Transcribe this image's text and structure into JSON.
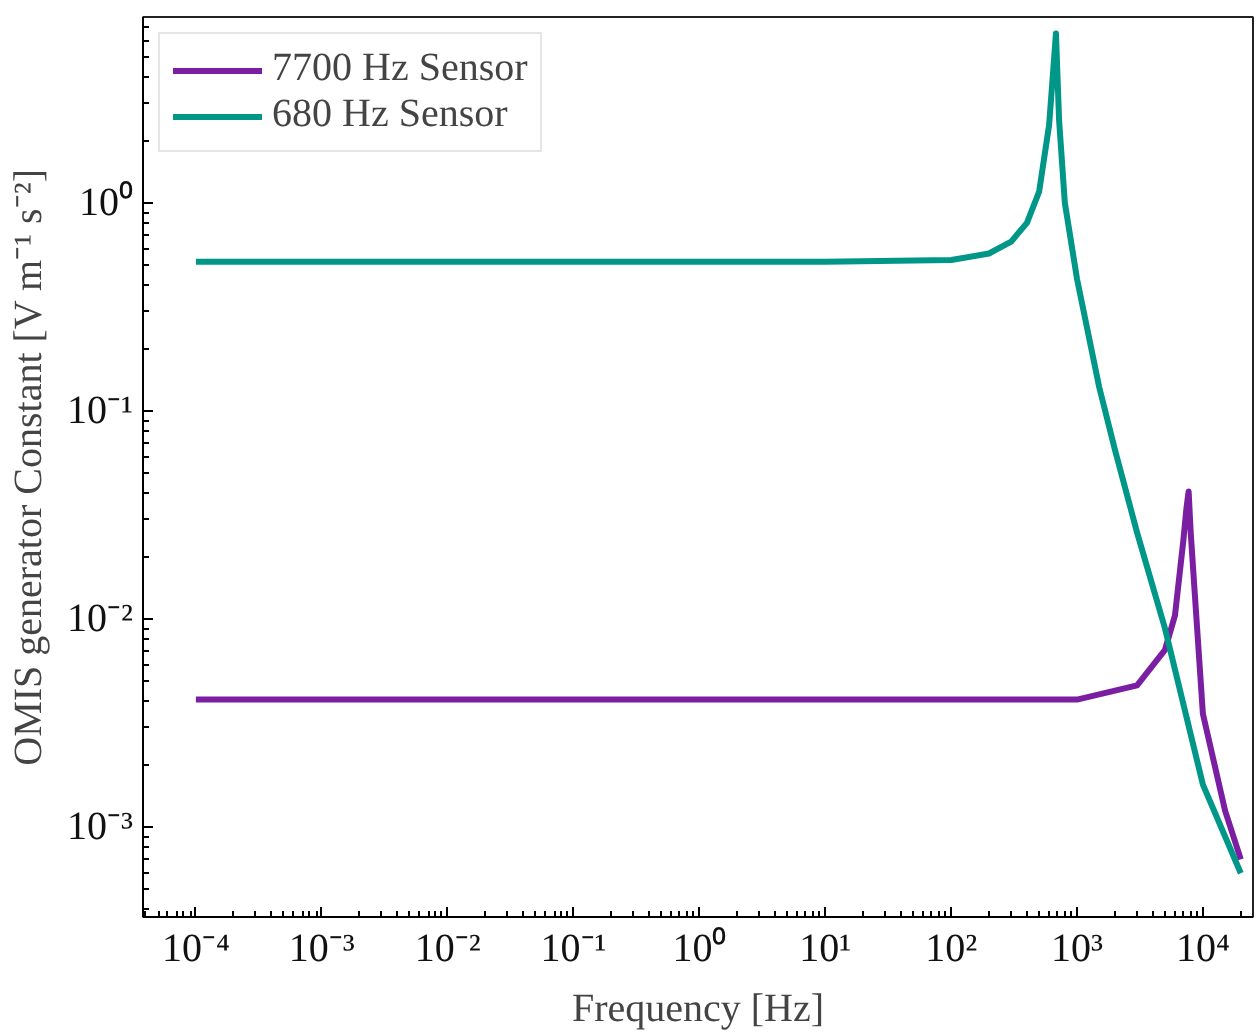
{
  "chart_data": {
    "type": "line",
    "xlabel": "Frequency [Hz]",
    "ylabel": "OMIS generator Constant [V m⁻¹ s⁻²]",
    "log": "xy",
    "grid": false,
    "legend": "top left",
    "marker": "none",
    "line_style": "solid",
    "xlim": [
      3.8e-05,
      25000.0
    ],
    "ylim": [
      0.00037,
      7.8
    ],
    "xticks": [
      {
        "value": 0.0001,
        "label": "10⁻⁴"
      },
      {
        "value": 0.001,
        "label": "10⁻³"
      },
      {
        "value": 0.01,
        "label": "10⁻²"
      },
      {
        "value": 0.1,
        "label": "10⁻¹"
      },
      {
        "value": 1,
        "label": "10⁰"
      },
      {
        "value": 10,
        "label": "10¹"
      },
      {
        "value": 100,
        "label": "10²"
      },
      {
        "value": 1000,
        "label": "10³"
      },
      {
        "value": 10000,
        "label": "10⁴"
      }
    ],
    "yticks": [
      {
        "value": 0.001,
        "label": "10⁻³"
      },
      {
        "value": 0.01,
        "label": "10⁻²"
      },
      {
        "value": 0.1,
        "label": "10⁻¹"
      },
      {
        "value": 1,
        "label": "10⁰"
      }
    ],
    "series": [
      {
        "name": "7700 Hz Sensor",
        "color": "#7b1fa2",
        "x": [
          0.0001,
          10,
          1000,
          3000,
          5000,
          6000,
          7000,
          7400,
          7700,
          8000,
          8500,
          10000,
          15000,
          20000
        ],
        "values": [
          0.0041,
          0.0041,
          0.0041,
          0.0048,
          0.0071,
          0.0104,
          0.024,
          0.034,
          0.041,
          0.026,
          0.015,
          0.0035,
          0.0012,
          0.0007
        ]
      },
      {
        "name": "680 Hz Sensor",
        "color": "#009688",
        "x": [
          0.0001,
          10,
          100,
          200,
          300,
          400,
          500,
          600,
          650,
          680,
          720,
          800,
          1000,
          1500,
          2000,
          3000,
          5000,
          10000,
          20000
        ],
        "values": [
          0.52,
          0.52,
          0.53,
          0.57,
          0.65,
          0.8,
          1.13,
          2.36,
          4.5,
          6.5,
          2.5,
          1.0,
          0.43,
          0.13,
          0.065,
          0.026,
          0.009,
          0.0016,
          0.0006
        ]
      }
    ]
  }
}
